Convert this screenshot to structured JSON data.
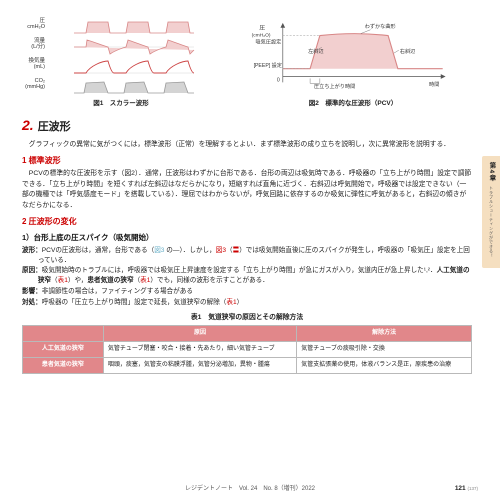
{
  "fig1": {
    "rows": [
      {
        "label": "圧\\ncmH₂O",
        "type": "plateau",
        "color": "#d88686",
        "fill": "#f2cfcf"
      },
      {
        "label": "流量\\n(L/分)",
        "type": "flow",
        "color": "#d88686",
        "fill": "#f2cfcf"
      },
      {
        "label": "換気量\\n(mL)",
        "type": "line",
        "color": "#c44",
        "fill": "none"
      },
      {
        "label": "CO₂\\n(mmHg)",
        "type": "co2",
        "color": "#9a9a9a",
        "fill": "#d4d4d4"
      }
    ],
    "caption": "図1　スカラー波形"
  },
  "fig2": {
    "ylabel": "圧\\n(cmH₂O)",
    "shape_color": "#d88686",
    "shape_fill": "#f2cfcf",
    "annotations": {
      "inspPressure": "吸気圧設定",
      "slightCurve": "わずかな曲形",
      "leftSlope": "左斜辺",
      "rightSlope": "右斜辺",
      "peep": "[PEEP] 設定",
      "zero": "0",
      "riseTime": "圧立ち上がり時間",
      "time": "時間"
    },
    "caption": "図2　標準的な圧波形（PCV）"
  },
  "section": {
    "num": "2.",
    "title": "圧波形"
  },
  "intro": "グラフィックの異常に気がつくには，標準波形（正常）を理解するとよい．まず標準波形の成り立ちを説明し，次に異常波形を説明する．",
  "s1": {
    "head": "1 標準波形",
    "body": "PCVの標準的な圧波形を示す（図2）．通常，圧波形はわずかに台形である．台形の両辺は吸気時である．呼吸器の「立ち上がり時間」設定で調節できる．「立ち上がり時間」を短くすれば左斜辺はなだらかになり，短縮すれば直角に近づく．右斜辺は呼気開始で，呼吸器では設定できない（一部の機種では「呼気感度モード」を搭載している）．理屈ではわからないが，呼気回路に依存するのか吸気に弾性に呼気があると，右斜辺の傾きがなだらかになる．"
  },
  "s2": {
    "head": "2 圧波形の変化",
    "item1": {
      "title": "1）台形上底の圧スパイク（吸気開始）",
      "lines": [
        {
          "k": "波形：",
          "v": "PCVの圧波形は，通常，台形である（図3 の—）．しかし，図3（〓）では吸気開始直後に圧のスパイクが発生し，呼吸器の「吸気圧」設定を上回っている．"
        },
        {
          "k": "原因：",
          "v": "吸気開始時のトラブルには，呼吸器では吸気圧上昇速度を設定する「立ち上がり時間」が急にガスが入り，気道内圧が急上昇した¹,²．人工気道の狭窄（表1）や，患者気道の狭窄（表1）でも，同様の波形を示すことがある．"
        },
        {
          "k": "影響：",
          "v": "非調節性の場合は，ファイティングする場合がある"
        },
        {
          "k": "対処：",
          "v": "呼吸器の「圧立ち上がり時間」設定で延長，気道狭窄の解除（表1）"
        }
      ]
    }
  },
  "table1": {
    "caption": "表1　気道狭窄の原因とその解除方法",
    "head": [
      "",
      "原因",
      "解除方法"
    ],
    "rows": [
      {
        "h": "人工気道の狭窄",
        "c1": "気管チューブ閉塞・咬合・接着・先あたり，細い気管チューブ",
        "c2": "気管チューブの痰吸引除・交換"
      },
      {
        "h": "患者気道の狭窄",
        "c1": "咽頭，痰塞，気管支の粘膜浮腫，気管分泌増加，異物・腫瘍",
        "c2": "気管支拡張薬の使用，体液バランス是正，原疾患の治療"
      }
    ]
  },
  "sidebar": {
    "chapter": "第4章",
    "subtitle": "トラブルシューティングができる！"
  },
  "footer": {
    "journal": "レジデントノート　Vol. 24　No. 8（増刊）2022",
    "page": "121",
    "total": "(137)"
  },
  "colors": {
    "accent": "#c00",
    "tableHeader": "#e1878a",
    "tab": "#f5dfc0"
  }
}
